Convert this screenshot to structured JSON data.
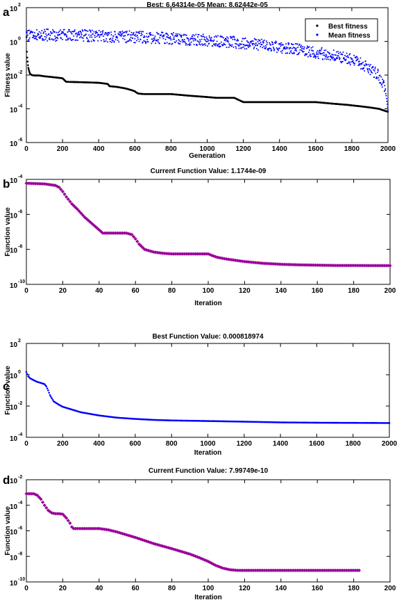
{
  "chart_data": [
    {
      "panel": "a",
      "type": "scatter",
      "title": "Best: 6.64314e-05 Mean: 8.62442e-05",
      "xlabel": "Generation",
      "ylabel": "Fitness value",
      "xlim": [
        0,
        2000
      ],
      "ylim": [
        1e-06,
        100
      ],
      "yscale": "log",
      "xticks": [
        0,
        200,
        400,
        600,
        800,
        1000,
        1200,
        1400,
        1600,
        1800,
        2000
      ],
      "yticks_exponents": [
        -6,
        -4,
        -2,
        0,
        2
      ],
      "legend": {
        "placement": "top-right",
        "entries": [
          "Best fitness",
          "Mean fitness"
        ]
      },
      "series": [
        {
          "name": "Best fitness",
          "color": "#000000",
          "x": [
            1,
            2,
            4,
            6,
            8,
            10,
            15,
            20,
            30,
            45,
            70,
            100,
            150,
            200,
            220,
            300,
            400,
            450,
            460,
            500,
            550,
            580,
            600,
            610,
            620,
            650,
            800,
            900,
            1000,
            1050,
            1100,
            1150,
            1200,
            1300,
            1400,
            1500,
            1600,
            1700,
            1780,
            1800,
            1850,
            1900,
            1950,
            2000
          ],
          "y": [
            1.8,
            0.4,
            0.15,
            0.08,
            0.05,
            0.03,
            0.018,
            0.012,
            0.01,
            0.0095,
            0.0095,
            0.0085,
            0.0075,
            0.0065,
            0.004,
            0.0038,
            0.0035,
            0.003,
            0.0022,
            0.002,
            0.0016,
            0.0013,
            0.0011,
            0.0009,
            0.0008,
            0.00075,
            0.00075,
            0.0006,
            0.0005,
            0.00045,
            0.00045,
            0.00045,
            0.00025,
            0.00025,
            0.00025,
            0.00025,
            0.00025,
            0.0002,
            0.00017,
            0.00016,
            0.00014,
            0.00012,
            0.0001,
            6.64e-05
          ]
        },
        {
          "name": "Mean fitness",
          "color": "#0000ff",
          "x": [
            0,
            100,
            200,
            400,
            600,
            800,
            1000,
            1200,
            1400,
            1600,
            1700,
            1800,
            1850,
            1900,
            1940,
            1960,
            1980,
            1990,
            2000
          ],
          "y": [
            2.5,
            2.4,
            2.3,
            2.1,
            1.8,
            1.5,
            1.15,
            0.8,
            0.45,
            0.22,
            0.15,
            0.08,
            0.05,
            0.025,
            0.012,
            0.006,
            0.002,
            0.0006,
            8.62e-05
          ]
        }
      ]
    },
    {
      "panel": "b",
      "type": "scatter",
      "title": "Current Function Value: 1.1744e-09",
      "xlabel": "Iteration",
      "ylabel": "Function value",
      "xlim": [
        0,
        200
      ],
      "ylim": [
        1e-10,
        0.0001
      ],
      "yscale": "log",
      "xticks": [
        0,
        20,
        40,
        60,
        80,
        100,
        120,
        140,
        160,
        180,
        200
      ],
      "yticks_exponents": [
        -10,
        -8,
        -6,
        -4
      ],
      "series": [
        {
          "color": "#990099",
          "x": [
            0,
            10,
            16,
            18,
            20,
            22,
            25,
            28,
            32,
            36,
            40,
            42,
            45,
            50,
            55,
            58,
            60,
            62,
            65,
            70,
            75,
            80,
            85,
            90,
            95,
            100,
            102,
            105,
            110,
            120,
            130,
            140,
            150,
            160,
            170,
            180,
            190,
            200
          ],
          "y": [
            6e-05,
            5.5e-05,
            4.5e-05,
            3.5e-05,
            2e-05,
            1e-05,
            4e-06,
            2e-06,
            7e-07,
            3e-07,
            1.3e-07,
            8.5e-08,
            8.5e-08,
            8.5e-08,
            8.5e-08,
            7e-08,
            4e-08,
            2e-08,
            1e-08,
            7e-09,
            6e-09,
            5.5e-09,
            5.5e-09,
            5.5e-09,
            5.5e-09,
            5.5e-09,
            4.5e-09,
            3.5e-09,
            2.8e-09,
            2e-09,
            1.6e-09,
            1.4e-09,
            1.3e-09,
            1.25e-09,
            1.2e-09,
            1.2e-09,
            1.18e-09,
            1.1744e-09
          ]
        }
      ]
    },
    {
      "panel": "c",
      "type": "scatter",
      "title": "Best Function Value: 0.000818974",
      "xlabel": "Iteration",
      "ylabel": "Function value",
      "xlim": [
        0,
        2000
      ],
      "ylim": [
        0.0001,
        100
      ],
      "yscale": "log",
      "xticks": [
        0,
        200,
        400,
        600,
        800,
        1000,
        1200,
        1400,
        1600,
        1800,
        2000
      ],
      "yticks_exponents": [
        -4,
        -2,
        0,
        2
      ],
      "series": [
        {
          "color": "#0000ff",
          "x": [
            0,
            10,
            20,
            40,
            60,
            80,
            100,
            110,
            120,
            130,
            150,
            180,
            200,
            250,
            300,
            400,
            500,
            600,
            700,
            800,
            900,
            1000,
            1100,
            1200,
            1300,
            1400,
            1500,
            1600,
            1700,
            1800,
            1900,
            2000
          ],
          "y": [
            1.5,
            0.8,
            0.6,
            0.45,
            0.35,
            0.3,
            0.25,
            0.18,
            0.1,
            0.05,
            0.02,
            0.012,
            0.009,
            0.006,
            0.004,
            0.0025,
            0.0018,
            0.0015,
            0.0013,
            0.0012,
            0.00115,
            0.0011,
            0.00105,
            0.001,
            0.00095,
            0.0009,
            0.00088,
            0.00086,
            0.00085,
            0.00084,
            0.00083,
            0.000818974
          ]
        }
      ]
    },
    {
      "panel": "d",
      "type": "scatter",
      "title": "Current Function Value: 7.99749e-10",
      "xlabel": "Iteration",
      "ylabel": "Function value",
      "xlim": [
        0,
        200
      ],
      "ylim": [
        1e-10,
        0.01
      ],
      "yscale": "log",
      "xticks": [
        0,
        20,
        40,
        60,
        80,
        100,
        120,
        140,
        160,
        180,
        200
      ],
      "yticks_exponents": [
        -10,
        -8,
        -6,
        -4,
        -2
      ],
      "series": [
        {
          "color": "#990099",
          "x": [
            0,
            4,
            6,
            8,
            10,
            12,
            14,
            16,
            18,
            20,
            22,
            24,
            25,
            26,
            30,
            35,
            40,
            45,
            50,
            60,
            70,
            80,
            90,
            95,
            100,
            104,
            108,
            112,
            116,
            120,
            130,
            140,
            150,
            160,
            170,
            180,
            183
          ],
          "y": [
            0.0008,
            0.0008,
            0.0006,
            0.0003,
            0.0001,
            4e-05,
            2.5e-05,
            2.2e-05,
            2.2e-05,
            2e-05,
            1e-05,
            4e-06,
            2e-06,
            1.5e-06,
            1.5e-06,
            1.5e-06,
            1.5e-06,
            1.2e-06,
            8e-07,
            3e-07,
            1e-07,
            4e-08,
            1.5e-08,
            8e-09,
            4e-09,
            2e-09,
            1.2e-09,
            9e-10,
            8e-10,
            8e-10,
            8e-10,
            8e-10,
            8e-10,
            8e-10,
            8e-10,
            8e-10,
            7.99749e-10
          ]
        }
      ]
    }
  ]
}
